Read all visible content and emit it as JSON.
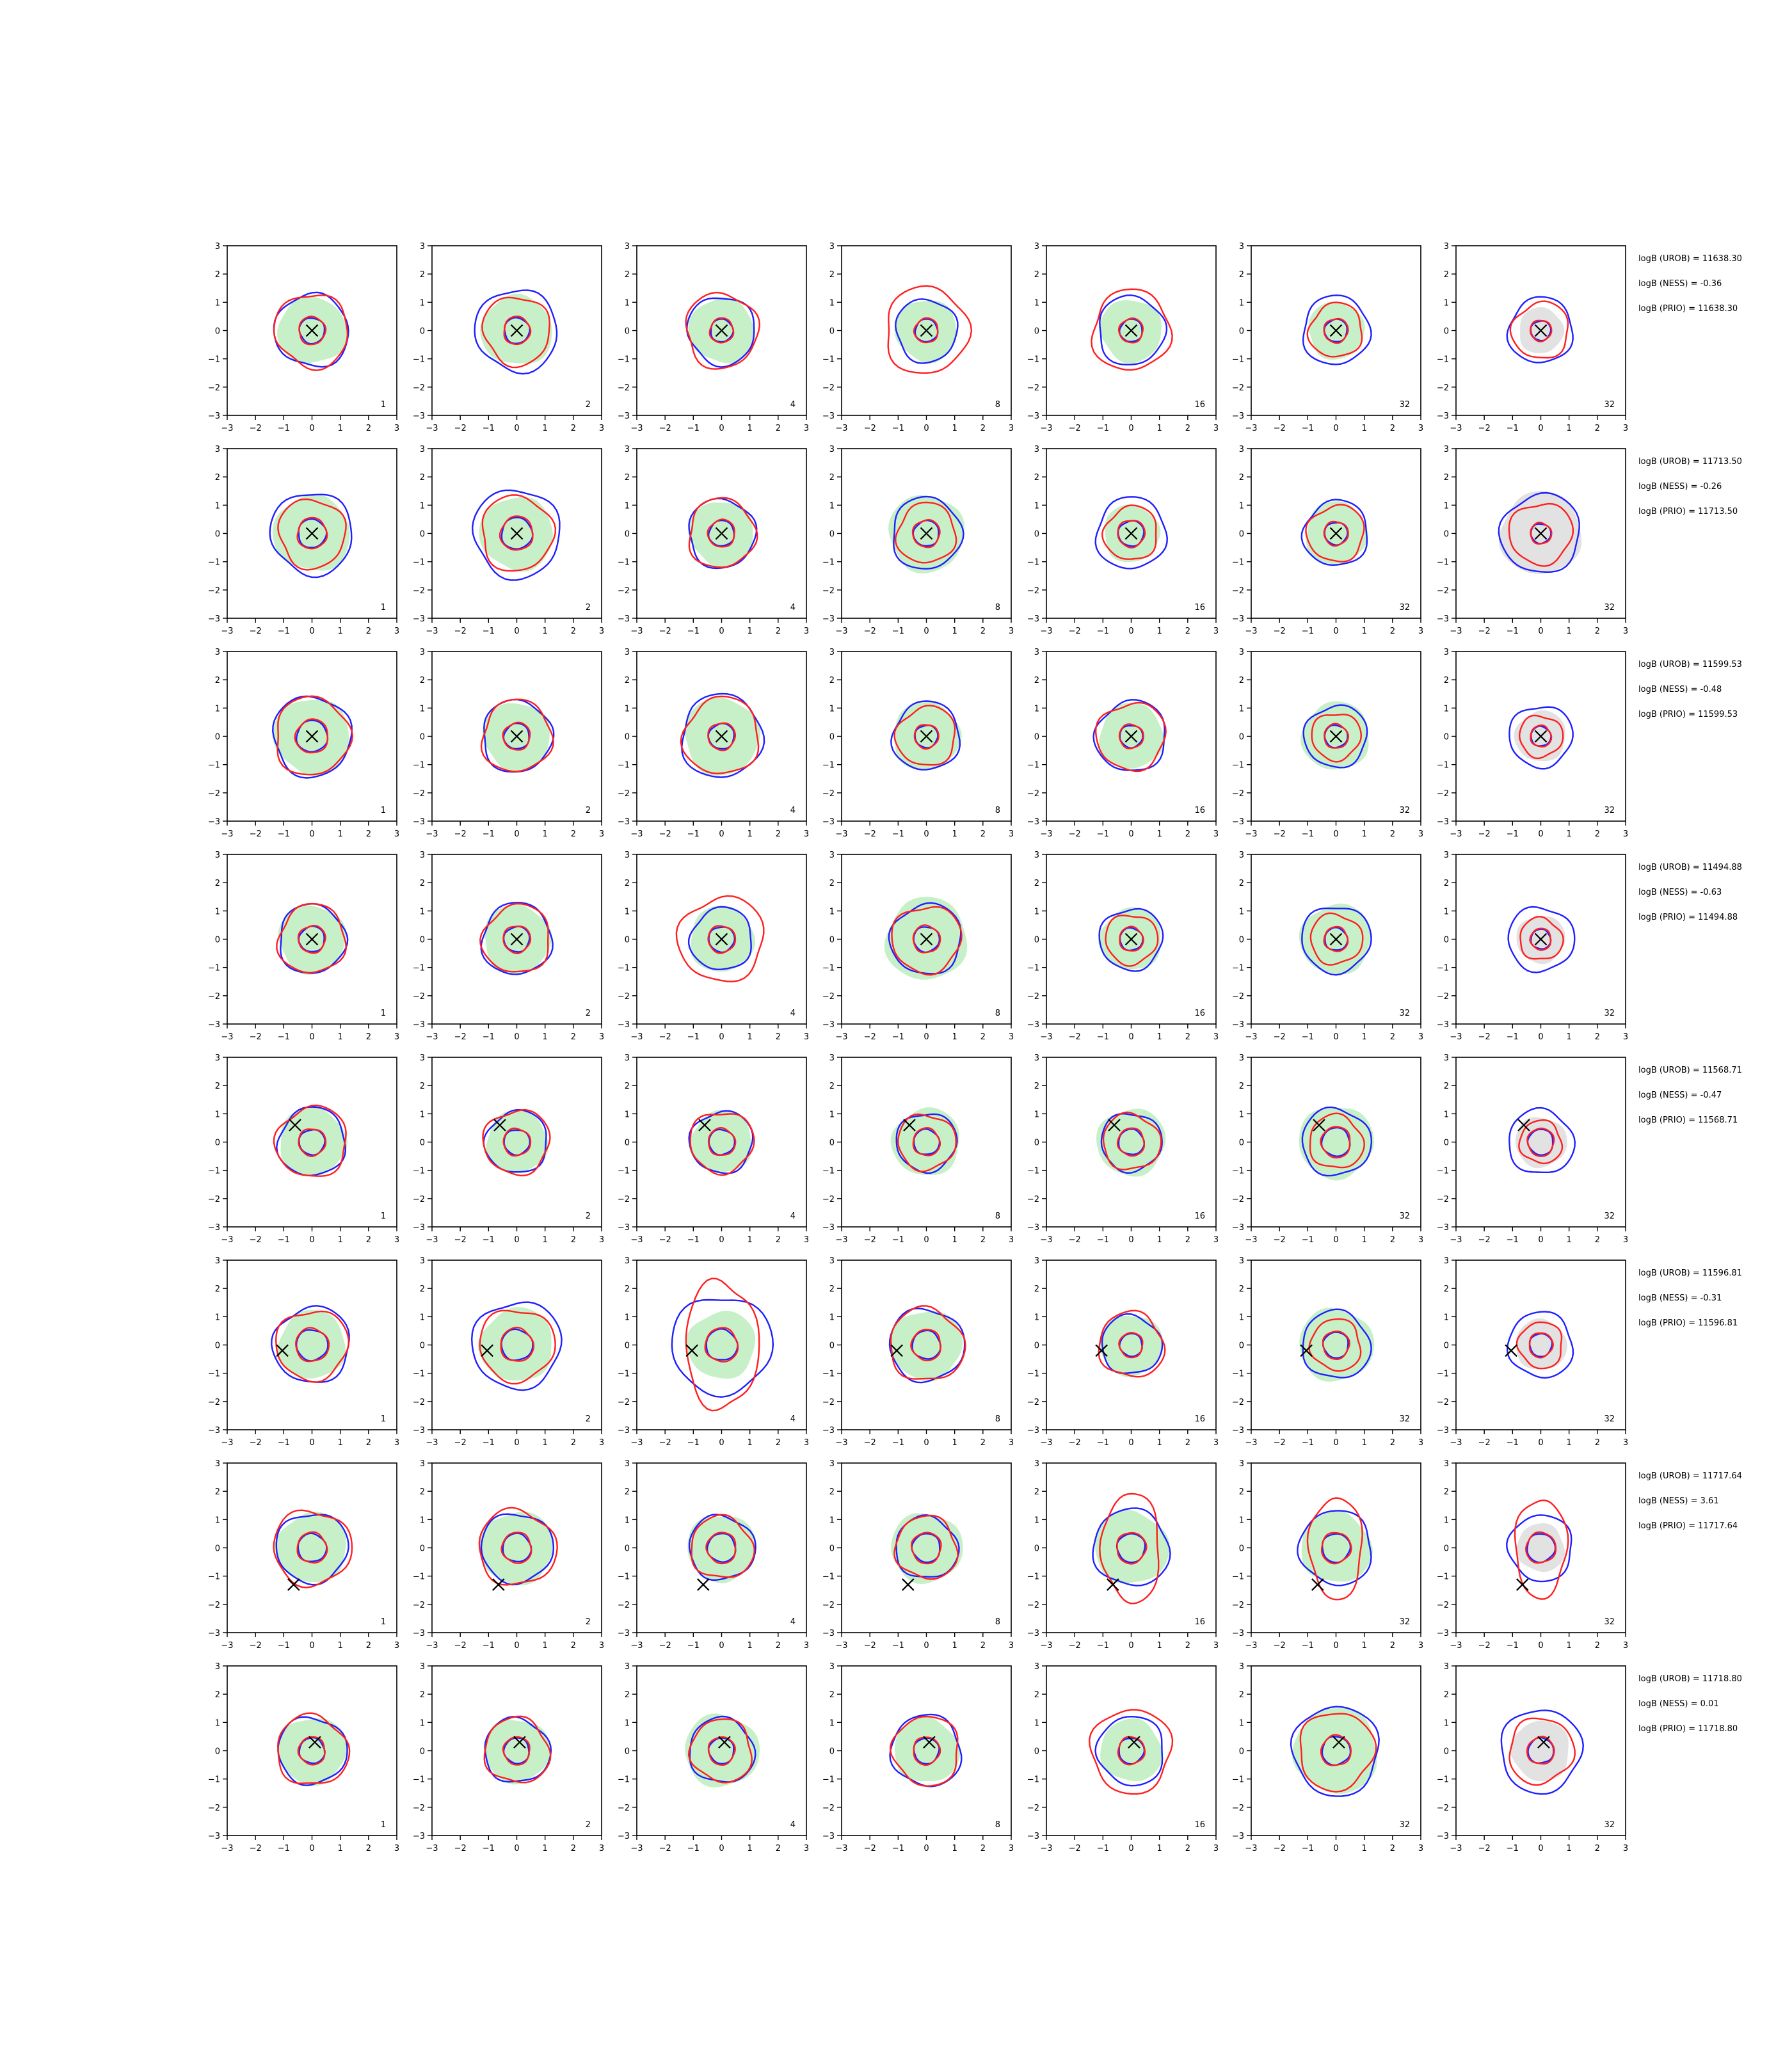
{
  "chart_data": {
    "type": "contour",
    "grid": false,
    "xlim": [
      -3,
      3
    ],
    "ylim": [
      -3,
      3
    ],
    "ticks": [
      -3,
      -2,
      -1,
      0,
      1,
      2,
      3
    ],
    "tick_labels": [
      "−3",
      "−2",
      "−1",
      "0",
      "1",
      "2",
      "3"
    ],
    "column_labels": [
      "1",
      "2",
      "4",
      "8",
      "16",
      "32",
      "32"
    ],
    "colors": {
      "blue_contour": "#1f1fff",
      "red_contour": "#ff1f1f",
      "fill_green": "#c8f0c8",
      "fill_gray": "#e2e2e2",
      "marker": "#000000"
    },
    "rows": [
      {
        "marker": [
          0.0,
          0.0
        ],
        "annotations": [
          "logB (UROB) = 11638.30",
          "logB (NESS) = -0.36",
          "logB (PRIO) = 11638.30"
        ]
      },
      {
        "marker": [
          0.0,
          0.0
        ],
        "annotations": [
          "logB (UROB) = 11713.50",
          "logB (NESS) = -0.26",
          "logB (PRIO) = 11713.50"
        ]
      },
      {
        "marker": [
          0.0,
          0.0
        ],
        "annotations": [
          "logB (UROB) = 11599.53",
          "logB (NESS) = -0.48",
          "logB (PRIO) = 11599.53"
        ]
      },
      {
        "marker": [
          0.0,
          0.0
        ],
        "annotations": [
          "logB (UROB) = 11494.88",
          "logB (NESS) = -0.63",
          "logB (PRIO) = 11494.88"
        ]
      },
      {
        "marker": [
          -0.6,
          0.6
        ],
        "annotations": [
          "logB (UROB) = 11568.71",
          "logB (NESS) = -0.47",
          "logB (PRIO) = 11568.71"
        ]
      },
      {
        "marker": [
          -1.05,
          -0.2
        ],
        "annotations": [
          "logB (UROB) = 11596.81",
          "logB (NESS) = -0.31",
          "logB (PRIO) = 11596.81"
        ]
      },
      {
        "marker": [
          -0.65,
          -1.3
        ],
        "annotations": [
          "logB (UROB) = 11717.64",
          "logB (NESS) = 3.61",
          "logB (PRIO) = 11717.64"
        ]
      },
      {
        "marker": [
          0.1,
          0.3
        ],
        "annotations": [
          "logB (UROB) = 11718.80",
          "logB (NESS) = 0.01",
          "logB (PRIO) = 11718.80"
        ]
      }
    ],
    "cells": [
      [
        {
          "fill": "green",
          "fill_r": 1.2,
          "blue_outer": 1.3,
          "red_outer": 1.3,
          "inner_r": 0.45
        },
        {
          "fill": "green",
          "fill_r": 1.25,
          "blue_outer": 1.45,
          "red_outer": 1.2,
          "inner_r": 0.45
        },
        {
          "fill": "green",
          "fill_r": 1.15,
          "blue_outer": 1.2,
          "red_outer": 1.3,
          "inner_r": 0.4
        },
        {
          "fill": "green",
          "fill_r": 1.1,
          "blue_outer": 1.1,
          "red_outer": 1.5,
          "inner_r": 0.4
        },
        {
          "fill": "green",
          "fill_r": 1.1,
          "blue_outer": 1.2,
          "red_outer": 1.4,
          "inner_r": 0.4
        },
        {
          "fill": "green",
          "fill_r": 1.0,
          "blue_outer": 1.2,
          "red_outer": 0.95,
          "inner_r": 0.4
        },
        {
          "fill": "gray",
          "fill_r": 0.8,
          "blue_outer": 1.15,
          "red_outer": 1.0,
          "inner_r": 0.35
        }
      ],
      [
        {
          "fill": "green",
          "fill_r": 1.35,
          "blue_outer": 1.45,
          "red_outer": 1.2,
          "inner_r": 0.5
        },
        {
          "fill": "green",
          "fill_r": 1.3,
          "blue_outer": 1.55,
          "red_outer": 1.3,
          "inner_r": 0.55
        },
        {
          "fill": "green",
          "fill_r": 1.15,
          "blue_outer": 1.2,
          "red_outer": 1.2,
          "inner_r": 0.45
        },
        {
          "fill": "green",
          "fill_r": 1.35,
          "blue_outer": 1.25,
          "red_outer": 1.05,
          "inner_r": 0.45
        },
        {
          "fill": "green",
          "fill_r": 1.0,
          "blue_outer": 1.25,
          "red_outer": 0.95,
          "inner_r": 0.45
        },
        {
          "fill": "green",
          "fill_r": 1.1,
          "blue_outer": 1.15,
          "red_outer": 1.0,
          "inner_r": 0.4
        },
        {
          "fill": "gray",
          "fill_r": 1.45,
          "blue_outer": 1.4,
          "red_outer": 1.1,
          "inner_r": 0.35
        }
      ],
      [
        {
          "fill": "green",
          "fill_r": 1.35,
          "blue_outer": 1.4,
          "red_outer": 1.35,
          "inner_r": 0.55
        },
        {
          "fill": "green",
          "fill_r": 1.2,
          "blue_outer": 1.25,
          "red_outer": 1.25,
          "inner_r": 0.45
        },
        {
          "fill": "green",
          "fill_r": 1.35,
          "blue_outer": 1.45,
          "red_outer": 1.35,
          "inner_r": 0.45
        },
        {
          "fill": "green",
          "fill_r": 1.2,
          "blue_outer": 1.2,
          "red_outer": 1.05,
          "inner_r": 0.4
        },
        {
          "fill": "green",
          "fill_r": 1.15,
          "blue_outer": 1.25,
          "red_outer": 1.2,
          "inner_r": 0.4
        },
        {
          "fill": "green",
          "fill_r": 1.2,
          "blue_outer": 1.1,
          "red_outer": 0.85,
          "inner_r": 0.4
        },
        {
          "fill": "gray",
          "fill_r": 0.9,
          "blue_outer": 1.1,
          "red_outer": 0.75,
          "inner_r": 0.35
        }
      ],
      [
        {
          "fill": "green",
          "fill_r": 1.2,
          "blue_outer": 1.2,
          "red_outer": 1.2,
          "inner_r": 0.45
        },
        {
          "fill": "green",
          "fill_r": 1.2,
          "blue_outer": 1.25,
          "red_outer": 1.2,
          "inner_r": 0.45
        },
        {
          "fill": "green",
          "fill_r": 1.15,
          "blue_outer": 1.1,
          "red_outer": 1.5,
          "inner_r": 0.45
        },
        {
          "fill": "green",
          "fill_r": 1.45,
          "blue_outer": 1.25,
          "red_outer": 1.2,
          "inner_r": 0.45
        },
        {
          "fill": "green",
          "fill_r": 1.1,
          "blue_outer": 1.1,
          "red_outer": 0.9,
          "inner_r": 0.4
        },
        {
          "fill": "green",
          "fill_r": 1.25,
          "blue_outer": 1.2,
          "red_outer": 0.9,
          "inner_r": 0.4
        },
        {
          "fill": "gray",
          "fill_r": 0.85,
          "blue_outer": 1.15,
          "red_outer": 0.75,
          "inner_r": 0.35
        }
      ],
      [
        {
          "fill": "green",
          "fill_r": 1.2,
          "blue_outer": 1.2,
          "red_outer": 1.25,
          "inner_r": 0.45
        },
        {
          "fill": "green",
          "fill_r": 1.1,
          "blue_outer": 1.1,
          "red_outer": 1.15,
          "inner_r": 0.45
        },
        {
          "fill": "green",
          "fill_r": 1.1,
          "blue_outer": 1.1,
          "red_outer": 1.1,
          "inner_r": 0.45
        },
        {
          "fill": "green",
          "fill_r": 1.2,
          "blue_outer": 1.05,
          "red_outer": 1.0,
          "inner_r": 0.45
        },
        {
          "fill": "green",
          "fill_r": 1.2,
          "blue_outer": 1.05,
          "red_outer": 1.0,
          "inner_r": 0.45
        },
        {
          "fill": "green",
          "fill_r": 1.3,
          "blue_outer": 1.2,
          "red_outer": 0.95,
          "inner_r": 0.5
        },
        {
          "fill": "gray",
          "fill_r": 0.9,
          "blue_outer": 1.15,
          "red_outer": 0.75,
          "inner_r": 0.45
        }
      ],
      [
        {
          "fill": "green",
          "fill_r": 1.2,
          "blue_outer": 1.35,
          "red_outer": 1.25,
          "inner_r": 0.55
        },
        {
          "fill": "green",
          "fill_r": 1.3,
          "blue_outer": 1.55,
          "red_outer": 1.3,
          "inner_r": 0.55
        },
        {
          "fill": "green",
          "fill_r": 1.2,
          "blue_outer": 1.75,
          "red_outer": 2.3,
          "inner_r": 0.55
        },
        {
          "fill": "green",
          "fill_r": 1.25,
          "blue_outer": 1.3,
          "red_outer": 1.3,
          "inner_r": 0.5
        },
        {
          "fill": "green",
          "fill_r": 1.1,
          "blue_outer": 1.05,
          "red_outer": 1.15,
          "inner_r": 0.4
        },
        {
          "fill": "green",
          "fill_r": 1.3,
          "blue_outer": 1.2,
          "red_outer": 0.9,
          "inner_r": 0.45
        },
        {
          "fill": "gray",
          "fill_r": 0.9,
          "blue_outer": 1.15,
          "red_outer": 0.8,
          "inner_r": 0.4
        }
      ],
      [
        {
          "fill": "green",
          "fill_r": 1.25,
          "blue_outer": 1.25,
          "red_outer": 1.35,
          "inner_r": 0.5
        },
        {
          "fill": "green",
          "fill_r": 1.3,
          "blue_outer": 1.25,
          "red_outer": 1.35,
          "inner_r": 0.5
        },
        {
          "fill": "green",
          "fill_r": 1.2,
          "blue_outer": 1.15,
          "red_outer": 1.1,
          "inner_r": 0.5
        },
        {
          "fill": "green",
          "fill_r": 1.25,
          "blue_outer": 1.1,
          "red_outer": 1.1,
          "inner_r": 0.5
        },
        {
          "fill": "green",
          "fill_r": 1.3,
          "blue_outer": 1.35,
          "red_outer": 1.9,
          "inner_r": 0.5
        },
        {
          "fill": "green",
          "fill_r": 1.25,
          "blue_outer": 1.3,
          "red_outer": 1.75,
          "inner_r": 0.5
        },
        {
          "fill": "gray",
          "fill_r": 0.85,
          "blue_outer": 1.15,
          "red_outer": 1.7,
          "inner_r": 0.5
        }
      ],
      [
        {
          "fill": "green",
          "fill_r": 1.2,
          "blue_outer": 1.2,
          "red_outer": 1.25,
          "inner_r": 0.45
        },
        {
          "fill": "green",
          "fill_r": 1.15,
          "blue_outer": 1.15,
          "red_outer": 1.15,
          "inner_r": 0.45
        },
        {
          "fill": "green",
          "fill_r": 1.3,
          "blue_outer": 1.15,
          "red_outer": 1.1,
          "inner_r": 0.45
        },
        {
          "fill": "green",
          "fill_r": 1.15,
          "blue_outer": 1.25,
          "red_outer": 1.2,
          "inner_r": 0.45
        },
        {
          "fill": "green",
          "fill_r": 1.1,
          "blue_outer": 1.2,
          "red_outer": 1.45,
          "inner_r": 0.45
        },
        {
          "fill": "green",
          "fill_r": 1.5,
          "blue_outer": 1.55,
          "red_outer": 1.35,
          "inner_r": 0.5
        },
        {
          "fill": "gray",
          "fill_r": 1.05,
          "blue_outer": 1.45,
          "red_outer": 1.15,
          "inner_r": 0.45
        }
      ]
    ]
  }
}
